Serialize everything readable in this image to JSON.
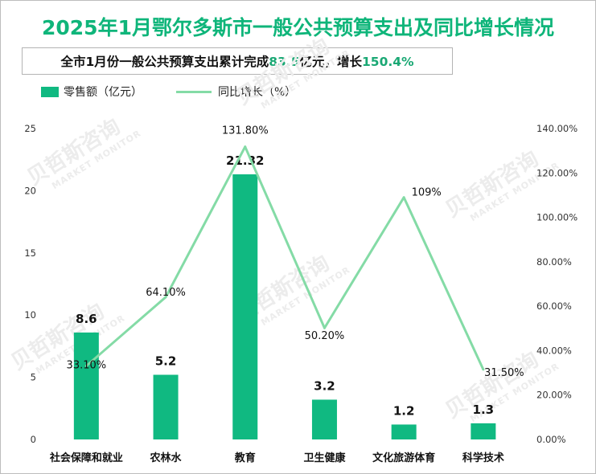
{
  "header": {
    "title": "2025年1月鄂尔多斯市一般公共预算支出及同比增长情况",
    "subtitle_parts": [
      "全市1月份一般公共预算支出累计完成",
      "83.5",
      "亿元，增长",
      "150.4%"
    ]
  },
  "watermark": {
    "text": "贝哲斯咨询",
    "sub": "MARKET MONITOR"
  },
  "colors": {
    "title": "#0fb57a",
    "bar": "#10b981",
    "line": "#84dba6",
    "highlight": "#1aa874"
  },
  "chart_data": {
    "type": "bar",
    "categories": [
      "社会保障和就业",
      "农林水",
      "教育",
      "卫生健康",
      "文化旅游体育",
      "科学技术"
    ],
    "series": [
      {
        "name": "零售额（亿元）",
        "type": "bar",
        "axis": "left",
        "values": [
          8.6,
          5.2,
          21.32,
          3.2,
          1.2,
          1.3
        ],
        "labels": [
          "8.6",
          "5.2",
          "21.32",
          "3.2",
          "1.2",
          "1.3"
        ]
      },
      {
        "name": "同比增长（%）",
        "type": "line",
        "axis": "right",
        "values": [
          33.1,
          64.1,
          131.8,
          50.2,
          109,
          31.5
        ],
        "labels": [
          "33.10%",
          "64.10%",
          "131.80%",
          "50.20%",
          "109%",
          "31.50%"
        ]
      }
    ],
    "y_left": {
      "lim": [
        0,
        25
      ],
      "ticks": [
        "0",
        "5",
        "10",
        "15",
        "20",
        "25"
      ]
    },
    "y_right": {
      "lim": [
        0,
        140
      ],
      "ticks": [
        "0.00%",
        "20.00%",
        "40.00%",
        "60.00%",
        "80.00%",
        "100.00%",
        "120.00%",
        "140.00%"
      ]
    },
    "legend": "top-left",
    "grid": false
  }
}
